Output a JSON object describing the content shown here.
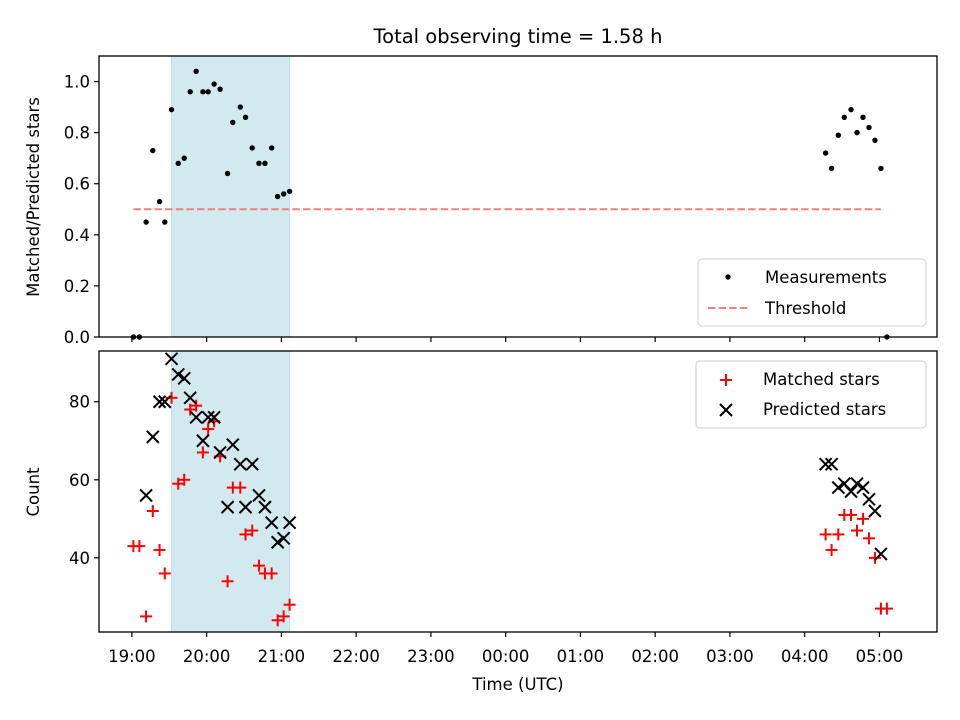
{
  "chart_data": {
    "title": "Total observing time = 1.58 h",
    "xlabel": "Time (UTC)",
    "x_unit": "hours (UTC, continuing past midnight)",
    "xlim": [
      18.56,
      5.77
    ],
    "xticks": [
      {
        "value": 19,
        "label": "19:00"
      },
      {
        "value": 20,
        "label": "20:00"
      },
      {
        "value": 21,
        "label": "21:00"
      },
      {
        "value": 22,
        "label": "22:00"
      },
      {
        "value": 23,
        "label": "23:00"
      },
      {
        "value": 0,
        "label": "00:00"
      },
      {
        "value": 1,
        "label": "01:00"
      },
      {
        "value": 2,
        "label": "02:00"
      },
      {
        "value": 3,
        "label": "03:00"
      },
      {
        "value": 4,
        "label": "04:00"
      },
      {
        "value": 5,
        "label": "05:00"
      }
    ],
    "highlight_span": {
      "start": 19.53,
      "end": 21.11,
      "color": "#d2e9ef"
    },
    "panels": [
      {
        "type": "scatter",
        "ylabel": "Matched/Predicted stars",
        "ylim": [
          0.0,
          1.1
        ],
        "yticks": [
          "0.0",
          "0.2",
          "0.4",
          "0.6",
          "0.8",
          "1.0"
        ],
        "legend_position": "lower-right",
        "series": [
          {
            "name": "Measurements",
            "marker": "dot",
            "color": "#000000",
            "x": [
              19.02,
              19.1,
              19.19,
              19.28,
              19.37,
              19.44,
              19.53,
              19.62,
              19.7,
              19.78,
              19.86,
              19.95,
              20.02,
              20.1,
              20.18,
              20.28,
              20.35,
              20.45,
              20.52,
              20.61,
              20.7,
              20.78,
              20.87,
              20.95,
              21.03,
              21.11,
              4.28,
              4.36,
              4.45,
              4.53,
              4.62,
              4.7,
              4.78,
              4.86,
              4.94,
              5.02,
              5.1
            ],
            "y": [
              0.0,
              0.0,
              0.45,
              0.73,
              0.53,
              0.45,
              0.89,
              0.68,
              0.7,
              0.96,
              1.04,
              0.96,
              0.96,
              0.99,
              0.97,
              0.64,
              0.84,
              0.9,
              0.86,
              0.74,
              0.68,
              0.68,
              0.74,
              0.55,
              0.56,
              0.57,
              0.72,
              0.66,
              0.79,
              0.86,
              0.89,
              0.8,
              0.86,
              0.82,
              0.77,
              0.66,
              0.0
            ]
          },
          {
            "name": "Threshold",
            "kind": "dashed-line",
            "color": "#f37f7f",
            "value": 0.5,
            "x_range": [
              19.02,
              5.02
            ]
          }
        ]
      },
      {
        "type": "scatter",
        "ylabel": "Count",
        "ylim": [
          21,
          93
        ],
        "yticks": [
          "40",
          "60",
          "80"
        ],
        "legend_position": "upper-right",
        "series": [
          {
            "name": "Matched stars",
            "marker": "plus",
            "color": "#ff0000",
            "x": [
              19.02,
              19.1,
              19.19,
              19.28,
              19.37,
              19.44,
              19.53,
              19.62,
              19.7,
              19.78,
              19.86,
              19.95,
              20.02,
              20.1,
              20.18,
              20.28,
              20.35,
              20.45,
              20.52,
              20.61,
              20.7,
              20.78,
              20.87,
              20.95,
              21.03,
              21.11,
              4.28,
              4.36,
              4.45,
              4.53,
              4.62,
              4.7,
              4.78,
              4.86,
              4.94,
              5.02,
              5.1
            ],
            "y": [
              43,
              43,
              25,
              52,
              42,
              36,
              81,
              59,
              60,
              78,
              79,
              67,
              73,
              75,
              66,
              34,
              58,
              58,
              46,
              47,
              38,
              36,
              36,
              24,
              25,
              28,
              46,
              42,
              46,
              51,
              51,
              47,
              50,
              45,
              40,
              27,
              27
            ]
          },
          {
            "name": "Predicted stars",
            "marker": "x",
            "color": "#000000",
            "x": [
              19.19,
              19.28,
              19.37,
              19.44,
              19.53,
              19.62,
              19.7,
              19.78,
              19.86,
              19.95,
              20.02,
              20.1,
              20.18,
              20.28,
              20.35,
              20.45,
              20.52,
              20.61,
              20.7,
              20.78,
              20.87,
              20.95,
              21.03,
              21.11,
              4.28,
              4.36,
              4.45,
              4.53,
              4.62,
              4.7,
              4.78,
              4.86,
              4.94,
              5.02
            ],
            "y": [
              56,
              71,
              80,
              80,
              91,
              87,
              86,
              81,
              76,
              70,
              76,
              76,
              67,
              53,
              69,
              64,
              53,
              64,
              56,
              53,
              49,
              44,
              45,
              49,
              64,
              64,
              58,
              59,
              57,
              59,
              58,
              55,
              52,
              41
            ]
          }
        ]
      }
    ]
  }
}
